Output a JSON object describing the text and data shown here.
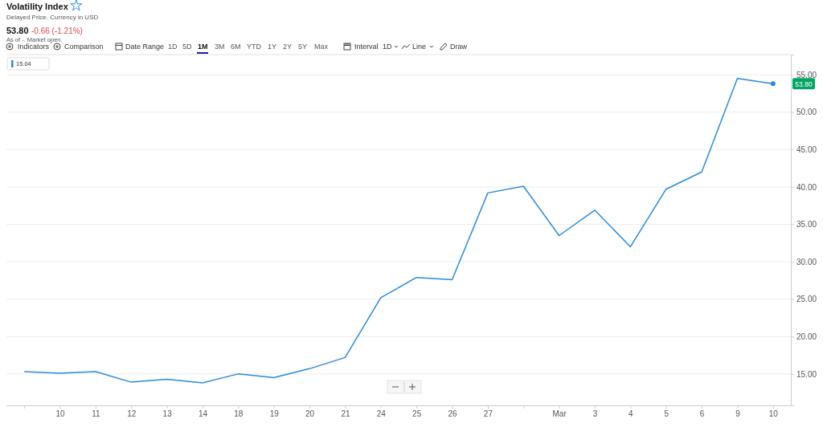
{
  "chart_data": {
    "type": "line",
    "title": "Volatility Index",
    "subtitle": "Delayed Price. Currency in USD",
    "categories": [
      null,
      "10",
      "11",
      "12",
      "13",
      "14",
      "18",
      "19",
      "20",
      "21",
      "24",
      "25",
      "26",
      "27",
      null,
      "Mar",
      "3",
      "4",
      "5",
      "6",
      "9",
      "10"
    ],
    "series": [
      {
        "color": "#2a8ad8",
        "values": [
          15.3,
          15.1,
          15.3,
          13.9,
          14.3,
          13.8,
          15.0,
          14.5,
          15.7,
          17.2,
          25.2,
          27.9,
          27.6,
          39.2,
          40.1,
          33.5,
          36.9,
          32.0,
          39.7,
          42.0,
          54.5,
          53.8
        ]
      }
    ],
    "ylim": [
      10.8,
      57.7
    ],
    "yticks": [
      {
        "value": 15,
        "label": "15.00"
      },
      {
        "value": 20,
        "label": "20.00"
      },
      {
        "value": 25,
        "label": "25.00"
      },
      {
        "value": 30,
        "label": "30.00"
      },
      {
        "value": 35,
        "label": "35.00"
      },
      {
        "value": 40,
        "label": "40.00"
      },
      {
        "value": 45,
        "label": "45.00"
      },
      {
        "value": 50,
        "label": "50.00"
      },
      {
        "value": 55,
        "label": "55.00"
      }
    ],
    "grid": "y",
    "line_style": "solid",
    "annotations": [
      "53.80",
      "-0.66 (-1.21%)",
      "As of -. Market open.",
      "Indicators",
      "Comparison",
      "Date Range",
      "1D",
      "5D",
      "1M",
      "3M",
      "6M",
      "YTD",
      "1Y",
      "2Y",
      "5Y",
      "Max",
      "Interval",
      "1D",
      "Line",
      "Draw",
      "15.04",
      "53.80"
    ]
  }
}
